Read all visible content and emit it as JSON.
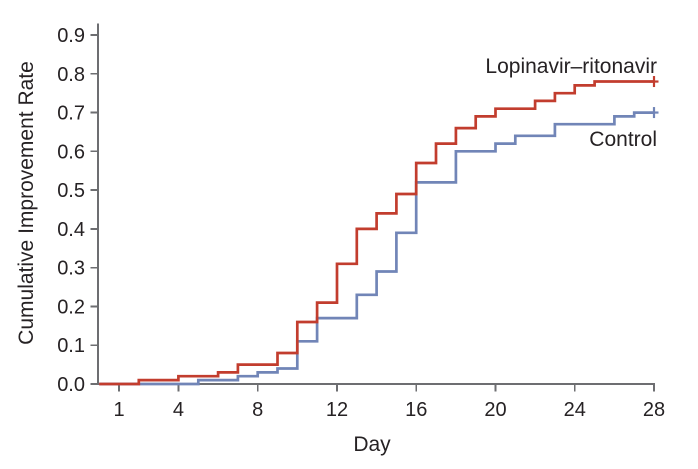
{
  "figure": {
    "background": "#ffffff"
  },
  "chart_data": {
    "type": "line",
    "subtype": "step-after-cumulative-incidence",
    "title": "",
    "xlabel": "Day",
    "ylabel": "Cumulative Improvement Rate",
    "xlim": [
      0,
      28
    ],
    "ylim": [
      0,
      0.93
    ],
    "grid": false,
    "legend_position": "inline-annotations-right",
    "x_ticks": [
      1,
      4,
      8,
      12,
      16,
      20,
      24,
      28
    ],
    "x_tick_labels": [
      "1",
      "4",
      "8",
      "12",
      "16",
      "20",
      "24",
      "28"
    ],
    "y_ticks": [
      0.0,
      0.1,
      0.2,
      0.3,
      0.4,
      0.5,
      0.6,
      0.7,
      0.8,
      0.9
    ],
    "y_tick_labels": [
      "0.0",
      "0.1",
      "0.2",
      "0.3",
      "0.4",
      "0.5",
      "0.6",
      "0.7",
      "0.8",
      "0.9"
    ],
    "axis_color": "#6d6e71",
    "text_color": "#262224",
    "series": [
      {
        "name": "Lopinavir–ritonavir",
        "color": "#c23d2e",
        "censor_mark_at_end": true,
        "points": [
          [
            0,
            0.0
          ],
          [
            2,
            0.01
          ],
          [
            4,
            0.02
          ],
          [
            6,
            0.03
          ],
          [
            7,
            0.05
          ],
          [
            9,
            0.08
          ],
          [
            10,
            0.16
          ],
          [
            11,
            0.21
          ],
          [
            12,
            0.31
          ],
          [
            13,
            0.4
          ],
          [
            14,
            0.44
          ],
          [
            15,
            0.49
          ],
          [
            16,
            0.57
          ],
          [
            17,
            0.62
          ],
          [
            18,
            0.66
          ],
          [
            19,
            0.69
          ],
          [
            20,
            0.71
          ],
          [
            22,
            0.73
          ],
          [
            23,
            0.75
          ],
          [
            24,
            0.77
          ],
          [
            25,
            0.78
          ],
          [
            28,
            0.78
          ]
        ]
      },
      {
        "name": "Control",
        "color": "#7185b7",
        "censor_mark_at_end": true,
        "points": [
          [
            0,
            0.0
          ],
          [
            5,
            0.01
          ],
          [
            7,
            0.02
          ],
          [
            8,
            0.03
          ],
          [
            9,
            0.04
          ],
          [
            10,
            0.11
          ],
          [
            11,
            0.17
          ],
          [
            13,
            0.23
          ],
          [
            14,
            0.29
          ],
          [
            15,
            0.39
          ],
          [
            16,
            0.52
          ],
          [
            18,
            0.6
          ],
          [
            20,
            0.62
          ],
          [
            21,
            0.64
          ],
          [
            23,
            0.67
          ],
          [
            26,
            0.69
          ],
          [
            27,
            0.7
          ],
          [
            28,
            0.7
          ]
        ]
      }
    ],
    "annotations": [
      {
        "text": "Lopinavir–ritonavir",
        "anchor": "end",
        "series_index": 0
      },
      {
        "text": "Control",
        "anchor": "end",
        "series_index": 1
      }
    ]
  }
}
